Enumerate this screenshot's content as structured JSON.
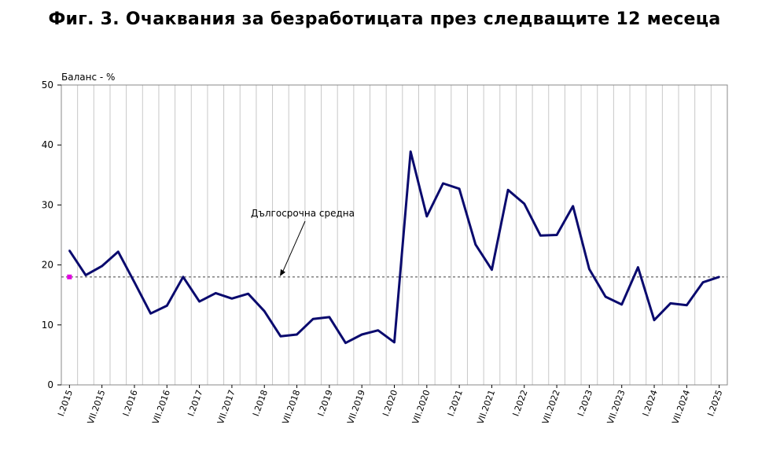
{
  "page_title": "Фиг. 3. Очаквания за безработицата през следващите 12 месеца",
  "colors": {
    "series": "#0a0a6e",
    "grid": "#c8c8c8",
    "longterm": "#444444",
    "marker": "#e000e0"
  },
  "chart_data": {
    "type": "line",
    "title": "Фиг. 3. Очаквания за безработицата през следващите 12 месеца",
    "ylabel": "Баланс - %",
    "xlabel": "",
    "ylim": [
      0,
      50
    ],
    "yticks": [
      0,
      10,
      20,
      30,
      40,
      50
    ],
    "grid": "vertical",
    "x": [
      "I.2015",
      "IV.2015",
      "VII.2015",
      "X.2015",
      "I.2016",
      "IV.2016",
      "VII.2016",
      "X.2016",
      "I.2017",
      "IV.2017",
      "VII.2017",
      "X.2017",
      "I.2018",
      "IV.2018",
      "VII.2018",
      "X.2018",
      "I.2019",
      "IV.2019",
      "VII.2019",
      "X.2019",
      "I.2020",
      "IV.2020",
      "VII.2020",
      "X.2020",
      "I.2021",
      "IV.2021",
      "VII.2021",
      "X.2021",
      "I.2022",
      "IV.2022",
      "VII.2022",
      "X.2022",
      "I.2023",
      "IV.2023",
      "VII.2023",
      "X.2023",
      "I.2024",
      "IV.2024",
      "VII.2024",
      "X.2024",
      "I.2025"
    ],
    "xtick_labels": [
      "I.2015",
      "VII.2015",
      "I.2016",
      "VII.2016",
      "I.2017",
      "VII.2017",
      "I.2018",
      "VII.2018",
      "I.2019",
      "VII.2019",
      "I.2020",
      "VII.2020",
      "I.2021",
      "VII.2021",
      "I.2022",
      "VII.2022",
      "I.2023",
      "VII.2023",
      "I.2024",
      "VII.2024",
      "I.2025"
    ],
    "series": [
      {
        "name": "",
        "values": [
          22.4,
          18.3,
          19.8,
          22.2,
          17.1,
          11.9,
          13.2,
          18.0,
          13.9,
          15.3,
          14.4,
          15.2,
          12.3,
          8.1,
          8.4,
          11.0,
          11.3,
          7.0,
          8.4,
          9.1,
          7.1,
          38.9,
          28.1,
          33.6,
          32.7,
          23.4,
          19.2,
          32.5,
          30.2,
          24.9,
          25.0,
          29.8,
          19.3,
          14.7,
          13.4,
          19.6,
          10.8,
          13.6,
          13.3,
          17.1,
          18.0
        ]
      }
    ],
    "long_term_average": {
      "label": "Дългосрочна средна",
      "value": 18.0
    }
  }
}
